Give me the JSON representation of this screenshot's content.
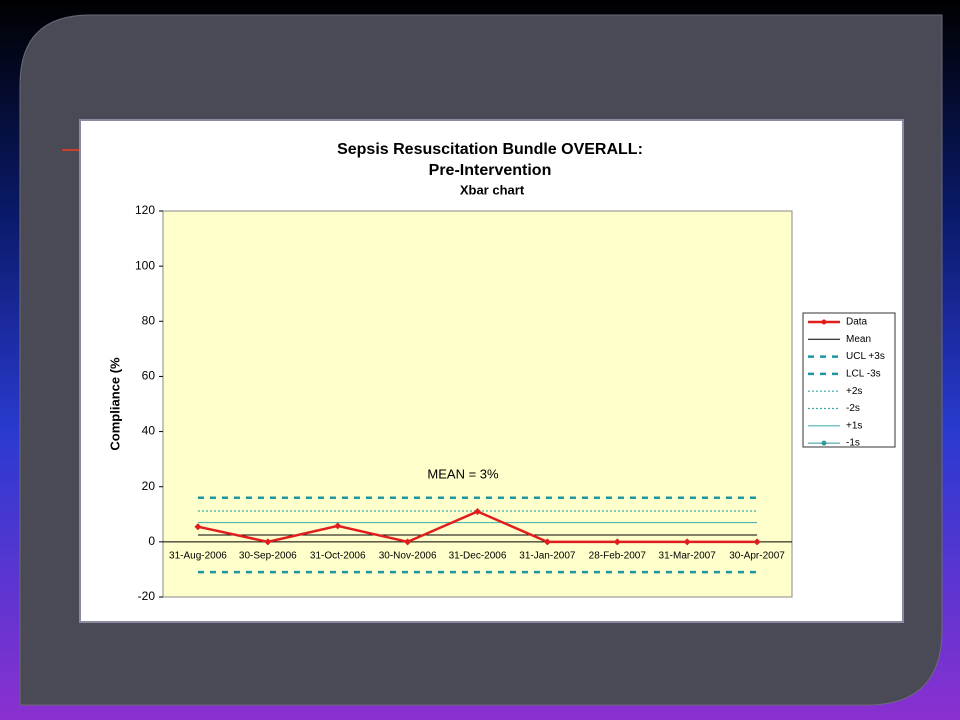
{
  "chart_data": {
    "type": "line",
    "title": "Sepsis Resuscitation Bundle OVERALL:",
    "subtitle": "Pre-Intervention",
    "subtitle2": "Xbar chart",
    "y_label": "Compliance (%",
    "annotation": "MEAN = 3%",
    "categories": [
      "31-Aug-2006",
      "30-Sep-2006",
      "31-Oct-2006",
      "30-Nov-2006",
      "31-Dec-2006",
      "31-Jan-2007",
      "28-Feb-2007",
      "31-Mar-2007",
      "30-Apr-2007"
    ],
    "ylim": [
      -20,
      120
    ],
    "yticks": [
      -20,
      0,
      20,
      40,
      60,
      80,
      100,
      120
    ],
    "series": [
      {
        "name": "Data",
        "color": "#e01e1e",
        "style": "solid",
        "width": 2.5,
        "marker": true,
        "values": [
          5.5,
          0,
          5.8,
          0,
          11,
          0,
          0,
          0,
          0
        ]
      },
      {
        "name": "Mean",
        "color": "#000000",
        "style": "solid",
        "width": 1,
        "marker": false,
        "values": [
          2.5,
          2.5,
          2.5,
          2.5,
          2.5,
          2.5,
          2.5,
          2.5,
          2.5
        ]
      },
      {
        "name": "UCL +3s",
        "color": "#1c96a0",
        "style": "dashed",
        "width": 2.5,
        "marker": false,
        "values": [
          16,
          16,
          16,
          16,
          16,
          16,
          16,
          16,
          16
        ]
      },
      {
        "name": "LCL -3s",
        "color": "#1c96a0",
        "style": "dashed",
        "width": 2.5,
        "marker": false,
        "values": [
          -11,
          -11,
          -11,
          -11,
          -11,
          -11,
          -11,
          -11,
          -11
        ]
      },
      {
        "name": "+2s",
        "color": "#3aa8a8",
        "style": "dotted",
        "width": 1.2,
        "marker": false,
        "values": [
          11.2,
          11.2,
          11.2,
          11.2,
          11.2,
          11.2,
          11.2,
          11.2,
          11.2
        ]
      },
      {
        "name": "-2s",
        "color": "#3aa8a8",
        "style": "dotted",
        "width": 1.2,
        "marker": false,
        "values": [
          null,
          null,
          null,
          null,
          null,
          null,
          null,
          null,
          null
        ]
      },
      {
        "name": "+1s",
        "color": "#4fb5b0",
        "style": "solid",
        "width": 1.2,
        "marker": false,
        "values": [
          7,
          7,
          7,
          7,
          7,
          7,
          7,
          7,
          7
        ]
      },
      {
        "name": "-1s",
        "color": "#2f9a98",
        "style": "solid",
        "width": 1,
        "marker": true,
        "values": [
          null,
          null,
          null,
          null,
          null,
          null,
          null,
          null,
          null
        ]
      }
    ]
  }
}
